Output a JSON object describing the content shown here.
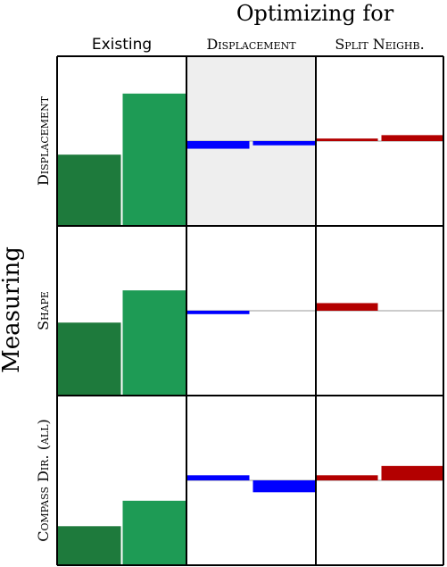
{
  "title": "Optimizing for",
  "row_axis_label": "Measuring",
  "columns": [
    {
      "label": "Existing",
      "style": "sans"
    },
    {
      "label": "Displacement",
      "style": "smallcaps"
    },
    {
      "label": "Split Neighb.",
      "style": "smallcaps"
    }
  ],
  "rows": [
    {
      "label": "Displacement"
    },
    {
      "label": "Shape"
    },
    {
      "label": "Compass Dir. (all)"
    }
  ],
  "colors": {
    "existing_dark": "#1e7a3c",
    "existing_light": "#1e9b55",
    "displacement": "#0000ff",
    "split": "#b30000",
    "highlight_bg": "#eeeeee",
    "baseline": "#bbbbbb",
    "grid": "#000000"
  },
  "chart_data": {
    "type": "bar",
    "layout": "grid 3x3 (rows = measure, columns = optimization target)",
    "existing": [
      {
        "row": "Displacement",
        "values": [
          0.42,
          0.78
        ],
        "ylim": [
          0,
          1
        ]
      },
      {
        "row": "Shape",
        "values": [
          0.43,
          0.62
        ],
        "ylim": [
          0,
          1
        ]
      },
      {
        "row": "Compass Dir. (all)",
        "values": [
          0.23,
          0.38
        ],
        "ylim": [
          0,
          1
        ]
      }
    ],
    "change_panels": [
      {
        "row": "Displacement",
        "column": "Displacement",
        "highlighted": true,
        "baseline": 0.5,
        "values": [
          -0.09,
          -0.05
        ],
        "ylim": [
          -1,
          1
        ]
      },
      {
        "row": "Displacement",
        "column": "Split Neighb.",
        "highlighted": false,
        "baseline": 0.5,
        "values": [
          0.03,
          0.07
        ],
        "ylim": [
          -1,
          1
        ]
      },
      {
        "row": "Shape",
        "column": "Displacement",
        "highlighted": false,
        "baseline": 0.5,
        "values": [
          -0.04,
          0.0
        ],
        "ylim": [
          -1,
          1
        ]
      },
      {
        "row": "Shape",
        "column": "Split Neighb.",
        "highlighted": false,
        "baseline": 0.5,
        "values": [
          0.09,
          0.0
        ],
        "ylim": [
          -1,
          1
        ]
      },
      {
        "row": "Compass Dir. (all)",
        "column": "Displacement",
        "highlighted": false,
        "baseline": 0.5,
        "values": [
          0.06,
          -0.14
        ],
        "ylim": [
          -1,
          1
        ]
      },
      {
        "row": "Compass Dir. (all)",
        "column": "Split Neighb.",
        "highlighted": false,
        "baseline": 0.5,
        "values": [
          0.06,
          0.17
        ],
        "ylim": [
          -1,
          1
        ]
      }
    ]
  }
}
